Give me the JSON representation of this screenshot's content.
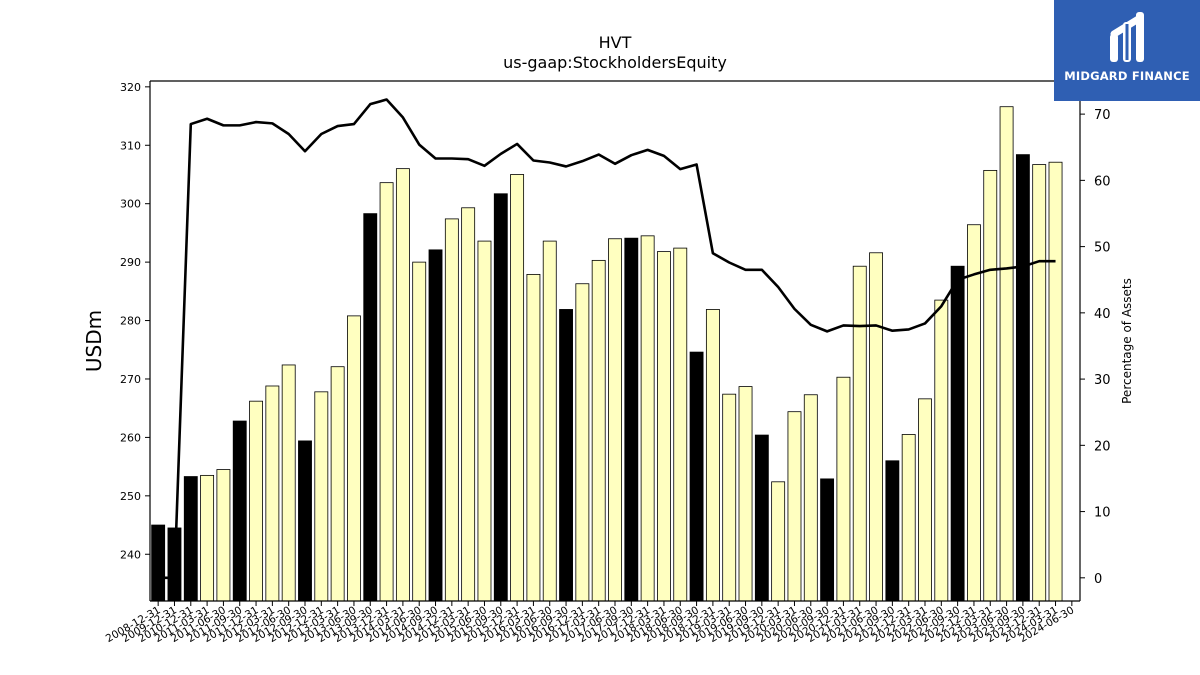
{
  "logo": {
    "text": "MIDGARD FINANCE",
    "icon": "midgard-logo-icon",
    "background": "#2f5fb3"
  },
  "chart_data": {
    "type": "bar",
    "title": "HVT",
    "subtitle": "us-gaap:StockholdersEquity",
    "ylabel": "USDm",
    "ylabel_right": "Percentage of Assets",
    "ylim": [
      232,
      321
    ],
    "ylim_right": [
      -3.5,
      75
    ],
    "yticks": [
      240,
      250,
      260,
      270,
      280,
      290,
      300,
      310,
      320
    ],
    "yticks_right": [
      0,
      10,
      20,
      30,
      40,
      50,
      60,
      70
    ],
    "colors": {
      "annual_bar": "#000000",
      "quarter_bar": "#ffffc0",
      "bar_edge": "#000000",
      "line": "#000000"
    },
    "categories": [
      "2008-12-31",
      "2009-12-31",
      "2010-12-31",
      "2011-03-31",
      "2011-06-30",
      "2011-09-30",
      "2011-12-31",
      "2012-03-31",
      "2012-06-30",
      "2012-09-30",
      "2012-12-31",
      "2013-03-31",
      "2013-06-30",
      "2013-09-30",
      "2013-12-31",
      "2014-03-31",
      "2014-06-30",
      "2014-09-30",
      "2014-12-31",
      "2015-03-31",
      "2015-06-30",
      "2015-09-30",
      "2015-12-31",
      "2016-03-31",
      "2016-06-30",
      "2016-09-30",
      "2016-12-31",
      "2017-03-31",
      "2017-06-30",
      "2017-09-30",
      "2017-12-31",
      "2018-03-31",
      "2018-06-30",
      "2018-09-30",
      "2018-12-31",
      "2019-03-31",
      "2019-06-30",
      "2019-09-30",
      "2019-12-31",
      "2020-03-31",
      "2020-06-30",
      "2020-09-30",
      "2020-12-31",
      "2021-03-31",
      "2021-06-30",
      "2021-09-30",
      "2021-12-31",
      "2022-03-31",
      "2022-06-30",
      "2022-09-30",
      "2022-12-31",
      "2023-03-31",
      "2023-06-30",
      "2023-09-30",
      "2023-12-31",
      "2024-03-31",
      "2024-06-30"
    ],
    "series": [
      {
        "kind": "bar",
        "values": [
          245.0,
          244.5,
          253.3,
          253.5,
          254.5,
          262.8,
          266.2,
          268.8,
          272.4,
          259.4,
          267.8,
          272.1,
          280.8,
          298.3,
          303.6,
          306.0,
          290.0,
          292.1,
          297.4,
          299.3,
          293.6,
          301.7,
          305.0,
          287.9,
          293.6,
          281.9,
          286.3,
          290.3,
          294.0,
          294.1,
          294.5,
          291.8,
          292.4,
          274.6,
          281.9,
          267.4,
          268.7,
          260.4,
          252.4,
          264.4,
          267.3,
          252.9,
          270.3,
          289.3,
          291.6,
          256.0,
          260.5,
          266.6,
          283.5,
          289.3,
          296.4,
          305.7,
          316.6,
          308.4,
          306.7,
          307.1,
          null
        ],
        "annual": [
          true,
          true,
          true,
          false,
          false,
          true,
          false,
          false,
          false,
          true,
          false,
          false,
          false,
          true,
          false,
          false,
          false,
          true,
          false,
          false,
          false,
          true,
          false,
          false,
          false,
          true,
          false,
          false,
          false,
          true,
          false,
          false,
          false,
          true,
          false,
          false,
          false,
          true,
          false,
          false,
          false,
          true,
          false,
          false,
          false,
          true,
          false,
          false,
          false,
          true,
          false,
          false,
          false,
          true,
          false,
          false,
          false
        ]
      },
      {
        "kind": "line",
        "axis": "right",
        "values": [
          0,
          0,
          68.5,
          69.3,
          68.3,
          68.3,
          68.8,
          68.6,
          67.0,
          64.4,
          67.0,
          68.2,
          68.5,
          71.5,
          72.2,
          69.5,
          65.4,
          63.3,
          63.3,
          63.2,
          62.2,
          64.0,
          65.5,
          63.0,
          62.7,
          62.1,
          62.9,
          63.9,
          62.5,
          63.8,
          64.6,
          63.7,
          61.7,
          62.4,
          49.0,
          47.6,
          46.5,
          46.5,
          43.9,
          40.6,
          38.2,
          37.2,
          38.1,
          38.0,
          38.1,
          37.3,
          37.5,
          38.4,
          41.0,
          45.0,
          45.8,
          46.5,
          46.7,
          47.0,
          47.8,
          47.8,
          null
        ]
      }
    ],
    "grid": false,
    "legend": "none"
  }
}
